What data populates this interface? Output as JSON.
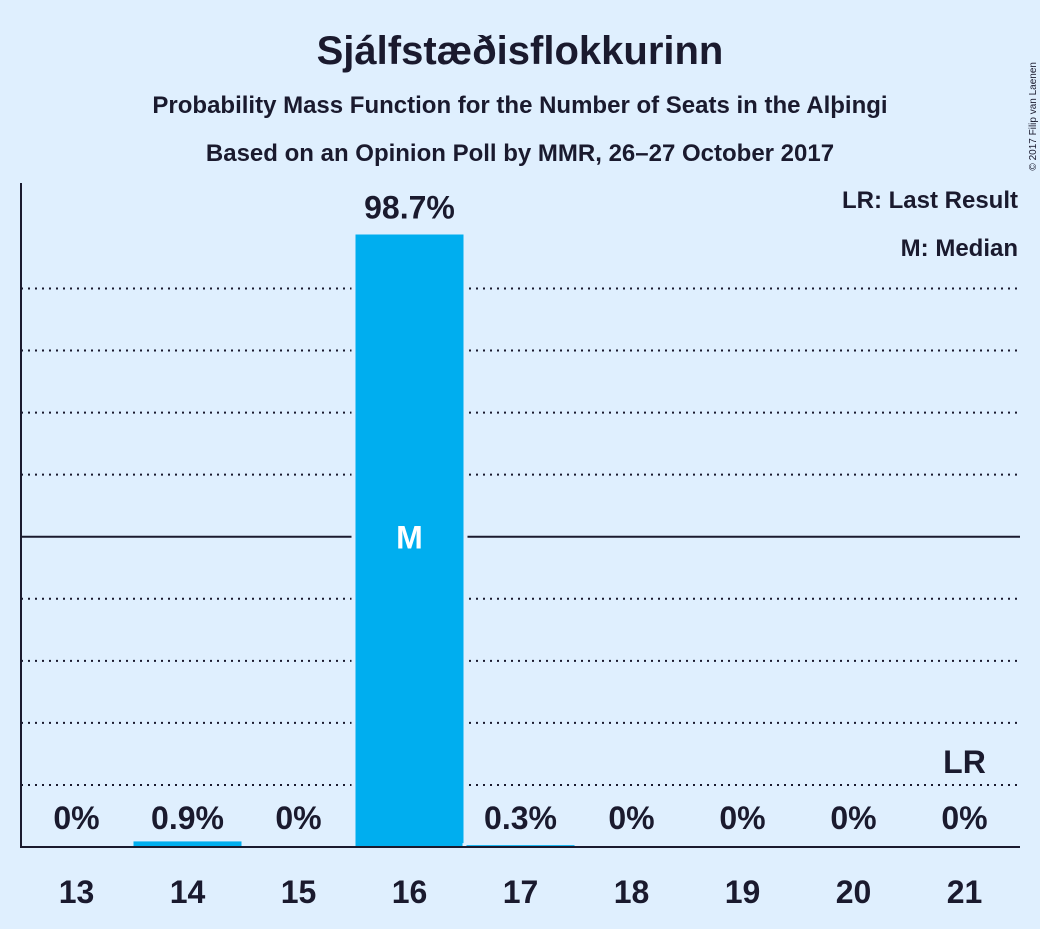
{
  "title": "Sjálfstæðisflokkurinn",
  "subtitle_1": "Probability Mass Function for the Number of Seats in the Alþingi",
  "subtitle_2": "Based on an Opinion Poll by MMR, 26–27 October 2017",
  "copyright": "© 2017 Filip van Laenen",
  "legend": {
    "last_result": "LR: Last Result",
    "median": "M: Median"
  },
  "colors": {
    "background": "#dfeffe",
    "bar": "#00aeef",
    "text": "#1a1a2e",
    "median_label": "#ffffff"
  },
  "chart_data": {
    "type": "bar",
    "categories": [
      "13",
      "14",
      "15",
      "16",
      "17",
      "18",
      "19",
      "20",
      "21"
    ],
    "values": [
      0,
      0.9,
      0,
      98.7,
      0.3,
      0,
      0,
      0,
      0
    ],
    "data_labels": [
      "0%",
      "0.9%",
      "0%",
      "98.7%",
      "0.3%",
      "0%",
      "0%",
      "0%",
      "0%"
    ],
    "median_category": "16",
    "median_label": "M",
    "last_result_category": "21",
    "last_result_label": "LR",
    "ylim": [
      0,
      107
    ],
    "gridlines_dotted": [
      10,
      20,
      30,
      40,
      60,
      70,
      80,
      90
    ],
    "gridline_solid": 50,
    "grid": true,
    "legend_placement": "top-right"
  }
}
